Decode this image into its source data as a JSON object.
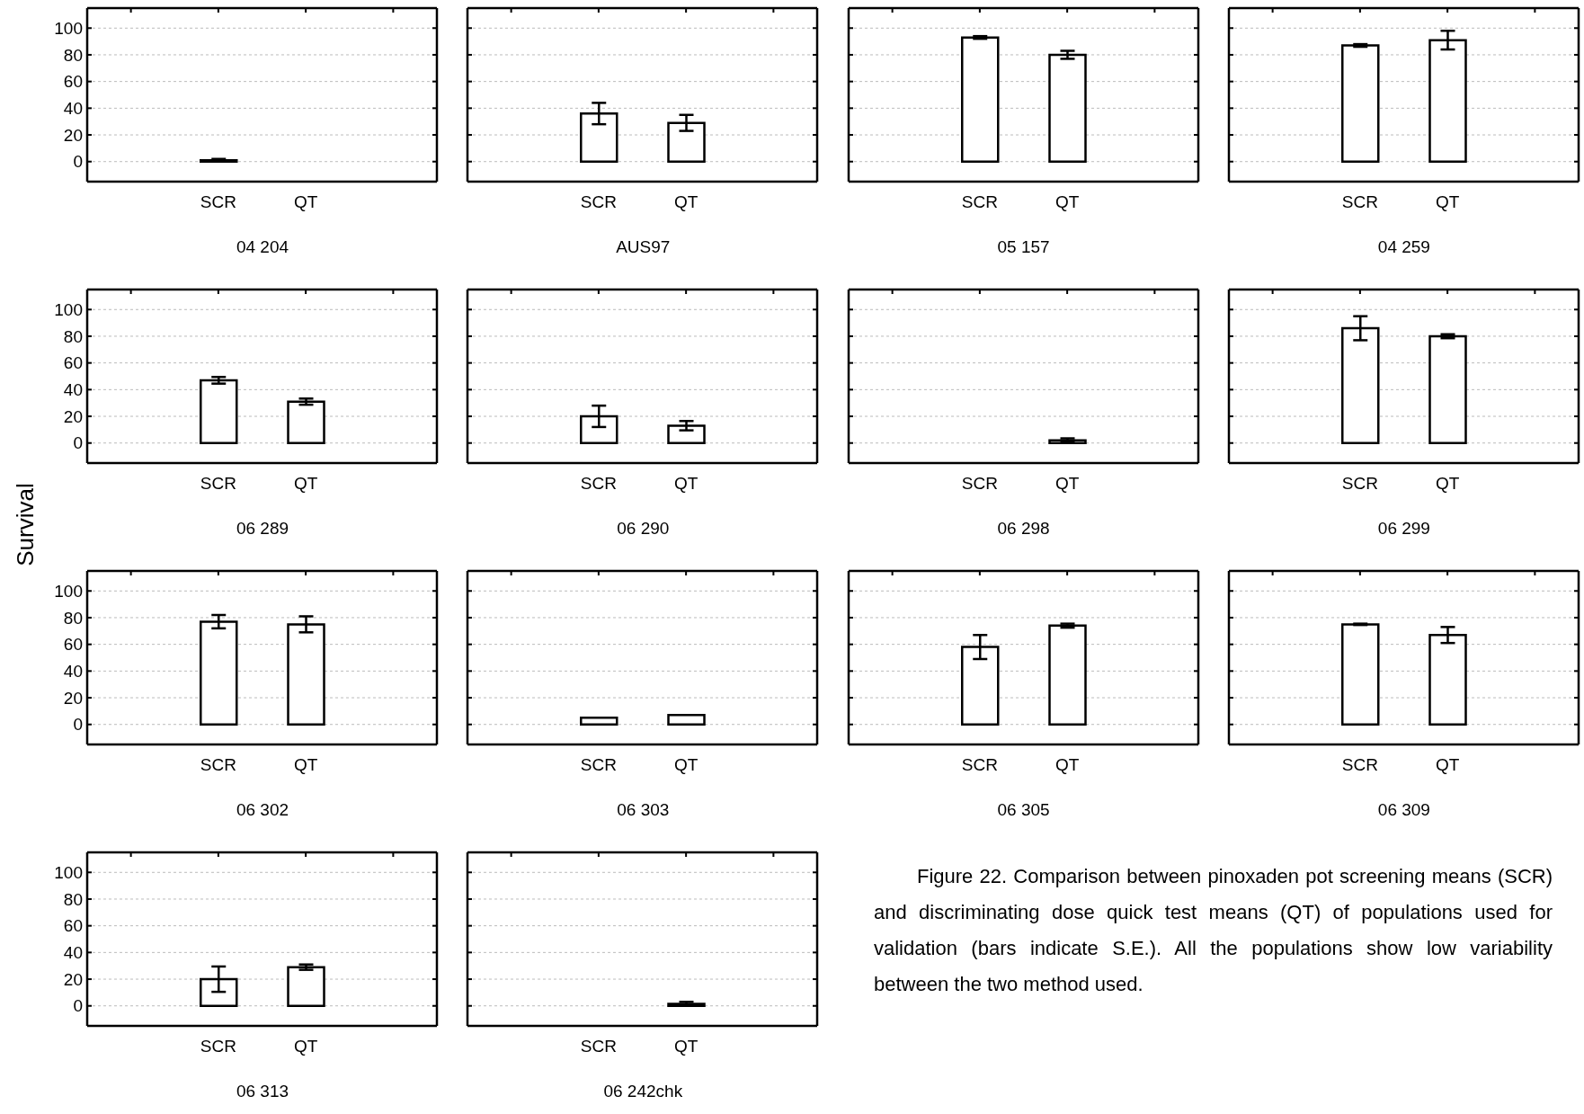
{
  "chart_data": [
    {
      "type": "bar",
      "title": "04 204",
      "categories": [
        null,
        "SCR",
        "QT",
        null
      ],
      "values": [
        null,
        1,
        0,
        null
      ],
      "errors": [
        null,
        1,
        null,
        null
      ],
      "color": "#ffffff",
      "ylim": [
        -15,
        115
      ],
      "yticks": [
        0,
        20,
        40,
        60,
        80,
        100
      ],
      "grid": "y"
    },
    {
      "type": "bar",
      "title": "AUS97",
      "categories": [
        null,
        "SCR",
        "QT",
        null
      ],
      "values": [
        null,
        36,
        29,
        null
      ],
      "errors": [
        null,
        8,
        6,
        null
      ],
      "color": "#ffffff",
      "ylim": [
        -15,
        115
      ],
      "yticks": [
        0,
        20,
        40,
        60,
        80,
        100
      ],
      "grid": "y",
      "tick_labels": "x"
    },
    {
      "type": "bar",
      "title": "05 157",
      "categories": [
        null,
        "SCR",
        "QT",
        null
      ],
      "values": [
        null,
        93,
        80,
        null
      ],
      "errors": [
        null,
        1,
        3,
        null
      ],
      "color": "#ffffff",
      "ylim": [
        -15,
        115
      ],
      "yticks": [
        0,
        20,
        40,
        60,
        80,
        100
      ],
      "grid": "y",
      "tick_labels": "x"
    },
    {
      "type": "bar",
      "title": "04 259",
      "categories": [
        null,
        "SCR",
        "QT",
        null
      ],
      "values": [
        null,
        87,
        91,
        null
      ],
      "errors": [
        null,
        1,
        7,
        null
      ],
      "color": "#ffffff",
      "ylim": [
        -15,
        115
      ],
      "yticks": [
        0,
        20,
        40,
        60,
        80,
        100
      ],
      "grid": "y",
      "tick_labels": "x"
    },
    {
      "type": "bar",
      "title": "06 289",
      "ylabel": "Survival",
      "categories": [
        null,
        "SCR",
        "QT",
        null
      ],
      "values": [
        null,
        47,
        31,
        null
      ],
      "errors": [
        null,
        2.5,
        2.3,
        null
      ],
      "color": "#ffffff",
      "ylim": [
        -15,
        115
      ],
      "yticks": [
        0,
        20,
        40,
        60,
        80,
        100
      ],
      "grid": "y"
    },
    {
      "type": "bar",
      "title": "06 290",
      "categories": [
        null,
        "SCR",
        "QT",
        null
      ],
      "values": [
        null,
        20,
        13,
        null
      ],
      "errors": [
        null,
        8,
        3.5,
        null
      ],
      "color": "#ffffff",
      "ylim": [
        -15,
        115
      ],
      "yticks": [
        0,
        20,
        40,
        60,
        80,
        100
      ],
      "grid": "y",
      "tick_labels": "x"
    },
    {
      "type": "bar",
      "title": "06 298",
      "categories": [
        null,
        "SCR",
        "QT",
        null
      ],
      "values": [
        null,
        0,
        2,
        null
      ],
      "errors": [
        null,
        null,
        1.5,
        null
      ],
      "color": "#ffffff",
      "ylim": [
        -15,
        115
      ],
      "yticks": [
        0,
        20,
        40,
        60,
        80,
        100
      ],
      "grid": "y",
      "tick_labels": "x"
    },
    {
      "type": "bar",
      "title": "06 299",
      "categories": [
        null,
        "SCR",
        "QT",
        null
      ],
      "values": [
        null,
        86,
        80,
        null
      ],
      "errors": [
        null,
        9,
        1.5,
        null
      ],
      "color": "#ffffff",
      "ylim": [
        -15,
        115
      ],
      "yticks": [
        0,
        20,
        40,
        60,
        80,
        100
      ],
      "grid": "y",
      "tick_labels": "x"
    },
    {
      "type": "bar",
      "title": "06 302",
      "categories": [
        null,
        "SCR",
        "QT",
        null
      ],
      "values": [
        null,
        77,
        75,
        null
      ],
      "errors": [
        null,
        5,
        6,
        null
      ],
      "color": "#ffffff",
      "ylim": [
        -15,
        115
      ],
      "yticks": [
        0,
        20,
        40,
        60,
        80,
        100
      ],
      "grid": "y"
    },
    {
      "type": "bar",
      "title": "06 303",
      "categories": [
        null,
        "SCR",
        "QT",
        null
      ],
      "values": [
        null,
        5,
        7,
        null
      ],
      "errors": [
        null,
        null,
        null,
        null
      ],
      "color": "#ffffff",
      "ylim": [
        -15,
        115
      ],
      "yticks": [
        0,
        20,
        40,
        60,
        80,
        100
      ],
      "grid": "y",
      "tick_labels": "x"
    },
    {
      "type": "bar",
      "title": "06 305",
      "categories": [
        null,
        "SCR",
        "QT",
        null
      ],
      "values": [
        null,
        58,
        74,
        null
      ],
      "errors": [
        null,
        9,
        1.5,
        null
      ],
      "color": "#ffffff",
      "ylim": [
        -15,
        115
      ],
      "yticks": [
        0,
        20,
        40,
        60,
        80,
        100
      ],
      "grid": "y",
      "tick_labels": "x"
    },
    {
      "type": "bar",
      "title": "06 309",
      "categories": [
        null,
        "SCR",
        "QT",
        null
      ],
      "values": [
        null,
        75,
        67,
        null
      ],
      "errors": [
        null,
        0.5,
        6,
        null
      ],
      "color": "#ffffff",
      "ylim": [
        -15,
        115
      ],
      "yticks": [
        0,
        20,
        40,
        60,
        80,
        100
      ],
      "grid": "y",
      "tick_labels": "x"
    },
    {
      "type": "bar",
      "title": "06 313",
      "categories": [
        null,
        "SCR",
        "QT",
        null
      ],
      "values": [
        null,
        20,
        29,
        null
      ],
      "errors": [
        null,
        9.5,
        2,
        null
      ],
      "color": "#ffffff",
      "ylim": [
        -15,
        115
      ],
      "yticks": [
        0,
        20,
        40,
        60,
        80,
        100
      ],
      "grid": "y"
    },
    {
      "type": "bar",
      "title": "06 242chk",
      "categories": [
        null,
        "SCR",
        "QT",
        null
      ],
      "values": [
        null,
        0,
        1.5,
        null
      ],
      "errors": [
        null,
        null,
        1.5,
        null
      ],
      "color": "#ffffff",
      "ylim": [
        -15,
        115
      ],
      "yticks": [
        0,
        20,
        40,
        60,
        80,
        100
      ],
      "grid": "y",
      "tick_labels": "x"
    },
    {
      "type": "other",
      "annotations": [
        "Figure 22. Comparison between pinoxaden pot screening means (SCR) and discriminating dose quick test means (QT) of populations used for validation (bars indicate S.E.). All the populations show low variability between the two method used."
      ]
    }
  ]
}
